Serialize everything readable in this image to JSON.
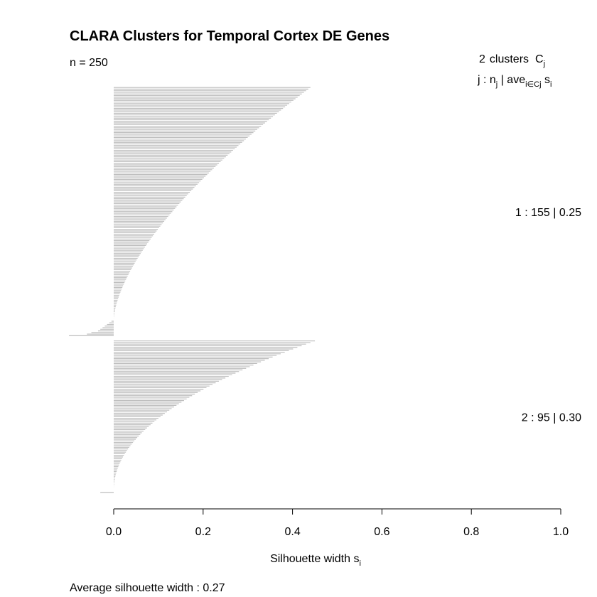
{
  "chart_data": {
    "type": "silhouette",
    "title": "CLARA Clusters for Temporal Cortex DE Genes",
    "n_label": "n = 250",
    "legend_header": {
      "clusters_count": "2",
      "clusters_word": "clusters",
      "c_symbol": "C",
      "c_sub": "j",
      "line2_prefix": "j :  n",
      "line2_nsub": "j",
      "line2_mid": " | ave",
      "line2_avesub": "i∈Cj",
      "line2_s": "  s",
      "line2_ssub": "i"
    },
    "xlabel_main": "Silhouette width s",
    "xlabel_sub": "i",
    "xlim": [
      0.0,
      1.0
    ],
    "ticks": [
      0.0,
      0.2,
      0.4,
      0.6,
      0.8,
      1.0
    ],
    "tick_labels": [
      "0.0",
      "0.2",
      "0.4",
      "0.6",
      "0.8",
      "1.0"
    ],
    "footer": "Average silhouette width :  0.27",
    "bar_color": "#bebebe",
    "clusters": [
      {
        "label": "1 :   155  |  0.25",
        "n": 155,
        "avg": 0.25,
        "max_width": 0.44,
        "negatives": [
          -0.005,
          -0.01,
          -0.015,
          -0.02,
          -0.025,
          -0.03,
          -0.035,
          -0.05,
          -0.06,
          -0.1
        ]
      },
      {
        "label": "2 :   95  |  0.30",
        "n": 95,
        "avg": 0.3,
        "max_width": 0.45,
        "negatives": [
          -0.03
        ]
      }
    ]
  }
}
